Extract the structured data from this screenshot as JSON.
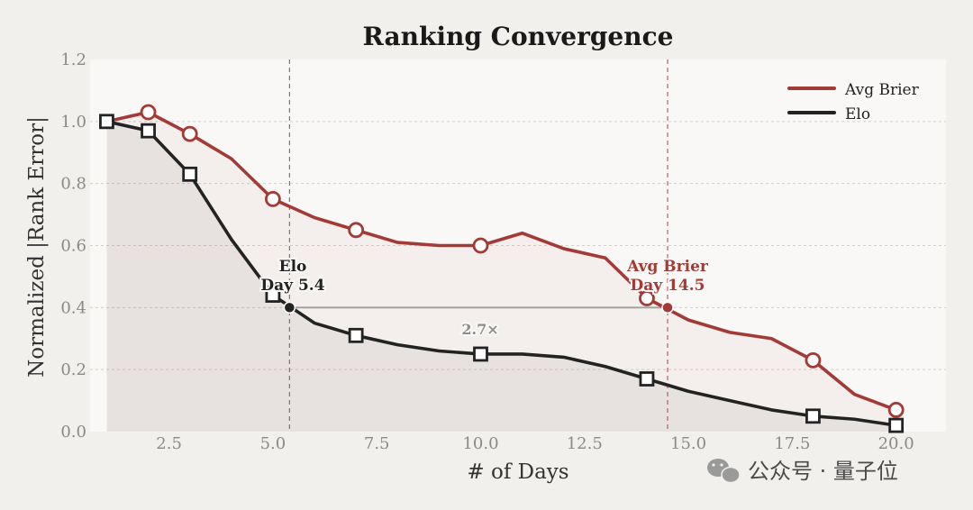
{
  "chart_data": {
    "type": "line",
    "title": "Ranking Convergence",
    "xlabel": "# of Days",
    "ylabel": "Normalized |Rank Error|",
    "xlim": [
      0.6,
      21.2
    ],
    "ylim": [
      0.0,
      1.2
    ],
    "xticks": [
      "2.5",
      "5.0",
      "7.5",
      "10.0",
      "12.5",
      "15.0",
      "17.5",
      "20.0"
    ],
    "yticks": [
      "0.0",
      "0.2",
      "0.4",
      "0.6",
      "0.8",
      "1.0",
      "1.2"
    ],
    "grid": true,
    "legend_position": "top-right",
    "threshold": 0.4,
    "series": [
      {
        "name": "Avg Brier",
        "color": "#a23a36",
        "marker": "circle",
        "x": [
          1,
          2,
          3,
          4,
          5,
          6,
          7,
          8,
          9,
          10,
          11,
          12,
          13,
          14,
          15,
          16,
          17,
          18,
          19,
          20
        ],
        "y": [
          1.0,
          1.03,
          0.96,
          0.88,
          0.75,
          0.69,
          0.65,
          0.61,
          0.6,
          0.6,
          0.64,
          0.59,
          0.56,
          0.43,
          0.36,
          0.32,
          0.3,
          0.23,
          0.12,
          0.07
        ],
        "marker_x": [
          2,
          3,
          5,
          7,
          10,
          14,
          18,
          20
        ]
      },
      {
        "name": "Elo",
        "color": "#232323",
        "marker": "square",
        "x": [
          1,
          2,
          3,
          4,
          5,
          6,
          7,
          8,
          9,
          10,
          11,
          12,
          13,
          14,
          15,
          16,
          17,
          18,
          19,
          20
        ],
        "y": [
          1.0,
          0.97,
          0.83,
          0.62,
          0.44,
          0.35,
          0.31,
          0.28,
          0.26,
          0.25,
          0.25,
          0.24,
          0.21,
          0.17,
          0.13,
          0.1,
          0.07,
          0.05,
          0.04,
          0.02
        ],
        "marker_x": [
          1,
          2,
          3,
          5,
          7,
          10,
          14,
          18,
          20
        ]
      }
    ],
    "crossings": [
      {
        "series": "Elo",
        "x": 5.4,
        "y": 0.4,
        "label_line1": "Elo",
        "label_line2": "Day 5.4"
      },
      {
        "series": "Avg Brier",
        "x": 14.5,
        "y": 0.4,
        "label_line1": "Avg Brier",
        "label_line2": "Day 14.5"
      }
    ],
    "ratio_annotation": "2.7×"
  },
  "colors": {
    "background": "#f2f0ed",
    "plot_background": "#f9f8f6",
    "brier": "#a23a36",
    "elo": "#232323",
    "grid": "#d3d0cb"
  },
  "watermark": {
    "icon": "wechat-icon",
    "text": "公众号 · 量子位"
  }
}
